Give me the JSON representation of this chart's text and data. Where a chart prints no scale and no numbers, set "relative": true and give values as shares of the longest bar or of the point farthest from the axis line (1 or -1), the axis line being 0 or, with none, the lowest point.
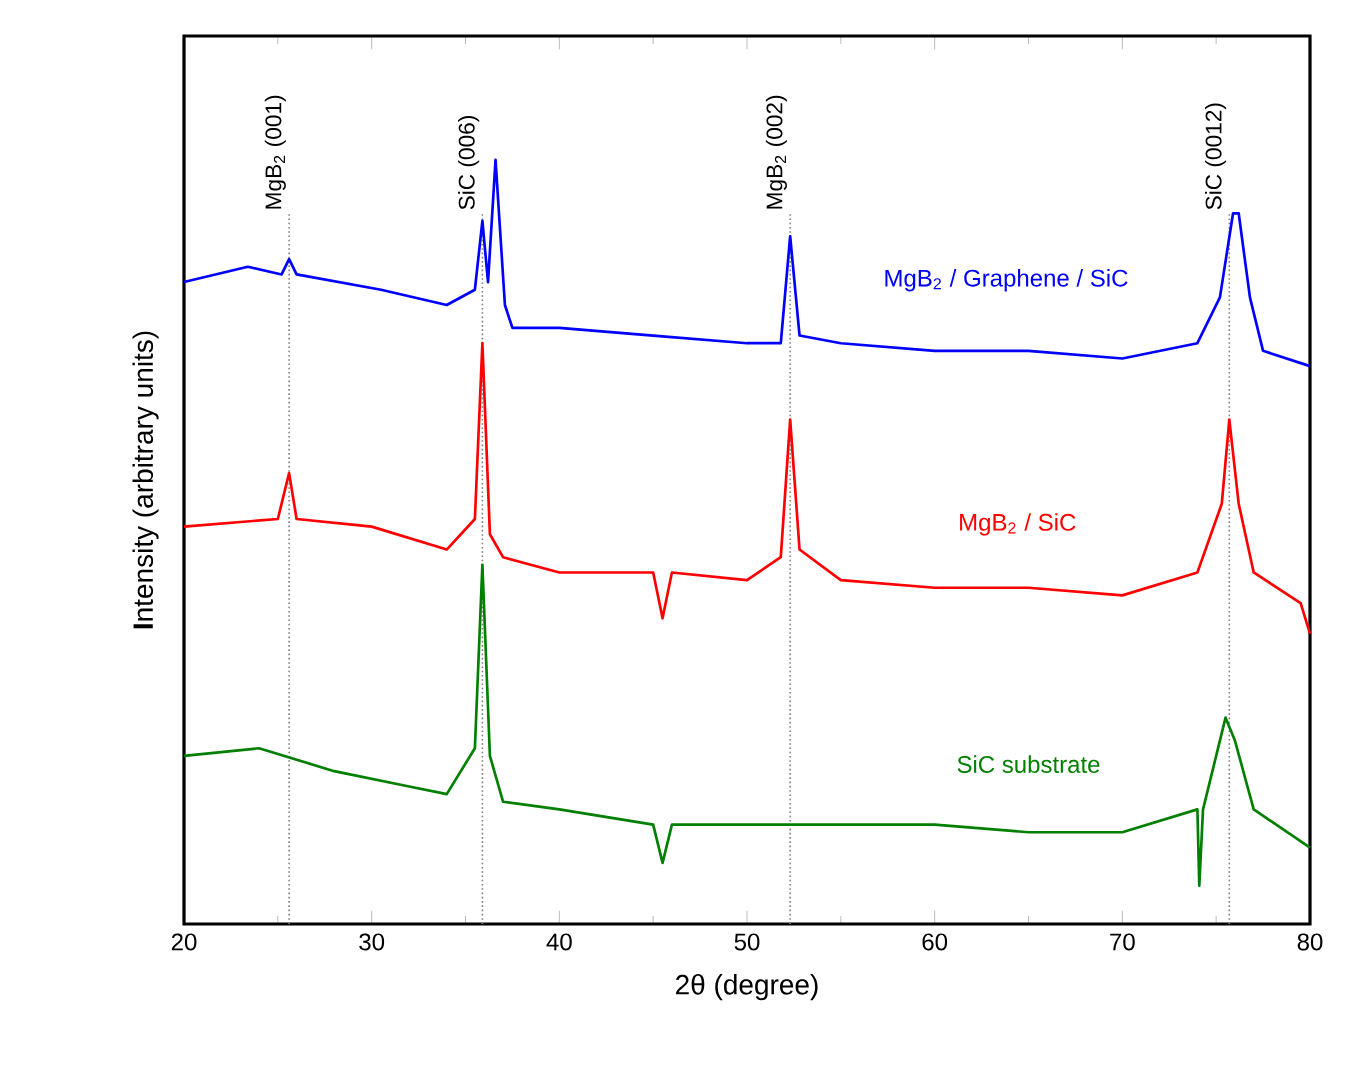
{
  "chart_data": {
    "type": "line",
    "relative": true,
    "xlabel": "2θ (degree)",
    "ylabel": "**I**ntensity (arbitrary units)",
    "xlim": [
      20,
      80
    ],
    "xticks": [
      20,
      30,
      40,
      50,
      60,
      70,
      80
    ],
    "tick_labels": "x",
    "series": [
      {
        "name": "MgB$_{2}$ / Graphene / SiC",
        "color": "#0000ff",
        "x": [
          20,
          23.4,
          25.2,
          25.6,
          26,
          30.5,
          34,
          35.5,
          35.9,
          36.2,
          36.6,
          37.1,
          37.5,
          40,
          45,
          50,
          51.8,
          52.3,
          52.8,
          55,
          60,
          65,
          70,
          74,
          75.2,
          75.9,
          76.2,
          76.8,
          77.5,
          80
        ],
        "values": [
          0.84,
          0.86,
          0.85,
          0.87,
          0.85,
          0.83,
          0.81,
          0.83,
          0.92,
          0.84,
          1.0,
          0.81,
          0.78,
          0.78,
          0.77,
          0.76,
          0.76,
          0.9,
          0.77,
          0.76,
          0.75,
          0.75,
          0.74,
          0.76,
          0.82,
          0.93,
          0.93,
          0.82,
          0.75,
          0.73
        ]
      },
      {
        "name": "MgB$_{2}$ / SiC",
        "color": "#ff0000",
        "x": [
          20,
          25,
          25.6,
          26,
          30,
          34,
          35.5,
          35.9,
          36.3,
          37,
          40,
          45,
          45.5,
          46,
          50,
          51.8,
          52.3,
          52.8,
          55,
          60,
          65,
          70,
          74,
          75.3,
          75.7,
          76.2,
          77,
          79.5,
          80
        ],
        "values": [
          0.52,
          0.53,
          0.59,
          0.53,
          0.52,
          0.49,
          0.53,
          0.76,
          0.51,
          0.48,
          0.46,
          0.46,
          0.4,
          0.46,
          0.45,
          0.48,
          0.66,
          0.49,
          0.45,
          0.44,
          0.44,
          0.43,
          0.46,
          0.55,
          0.66,
          0.55,
          0.46,
          0.42,
          0.38
        ]
      },
      {
        "name": "SiC substrate",
        "color": "#007f00",
        "x": [
          20,
          24,
          28,
          32,
          34,
          35.5,
          35.9,
          36.3,
          37,
          40,
          45,
          45.5,
          46,
          50,
          55,
          60,
          65,
          70,
          74,
          74.1,
          74.3,
          75.5,
          76,
          77,
          80
        ],
        "values": [
          0.22,
          0.23,
          0.2,
          0.18,
          0.17,
          0.23,
          0.47,
          0.22,
          0.16,
          0.15,
          0.13,
          0.08,
          0.13,
          0.13,
          0.13,
          0.13,
          0.12,
          0.12,
          0.15,
          0.05,
          0.15,
          0.27,
          0.24,
          0.15,
          0.1
        ]
      }
    ],
    "ref_lines": [
      {
        "axis": "x",
        "value": 25.6,
        "label": "MgB$_{2}$ (001)",
        "color": "#808080",
        "line_style": "dotted"
      },
      {
        "axis": "x",
        "value": 35.9,
        "label": "SiC (006)",
        "color": "#808080",
        "line_style": "dotted"
      },
      {
        "axis": "x",
        "value": 52.3,
        "label": "MgB$_{2}$ (002)",
        "color": "#808080",
        "line_style": "dotted"
      },
      {
        "axis": "x",
        "value": 75.7,
        "label": "SiC (0012)",
        "color": "#808080",
        "line_style": "dotted"
      }
    ]
  }
}
